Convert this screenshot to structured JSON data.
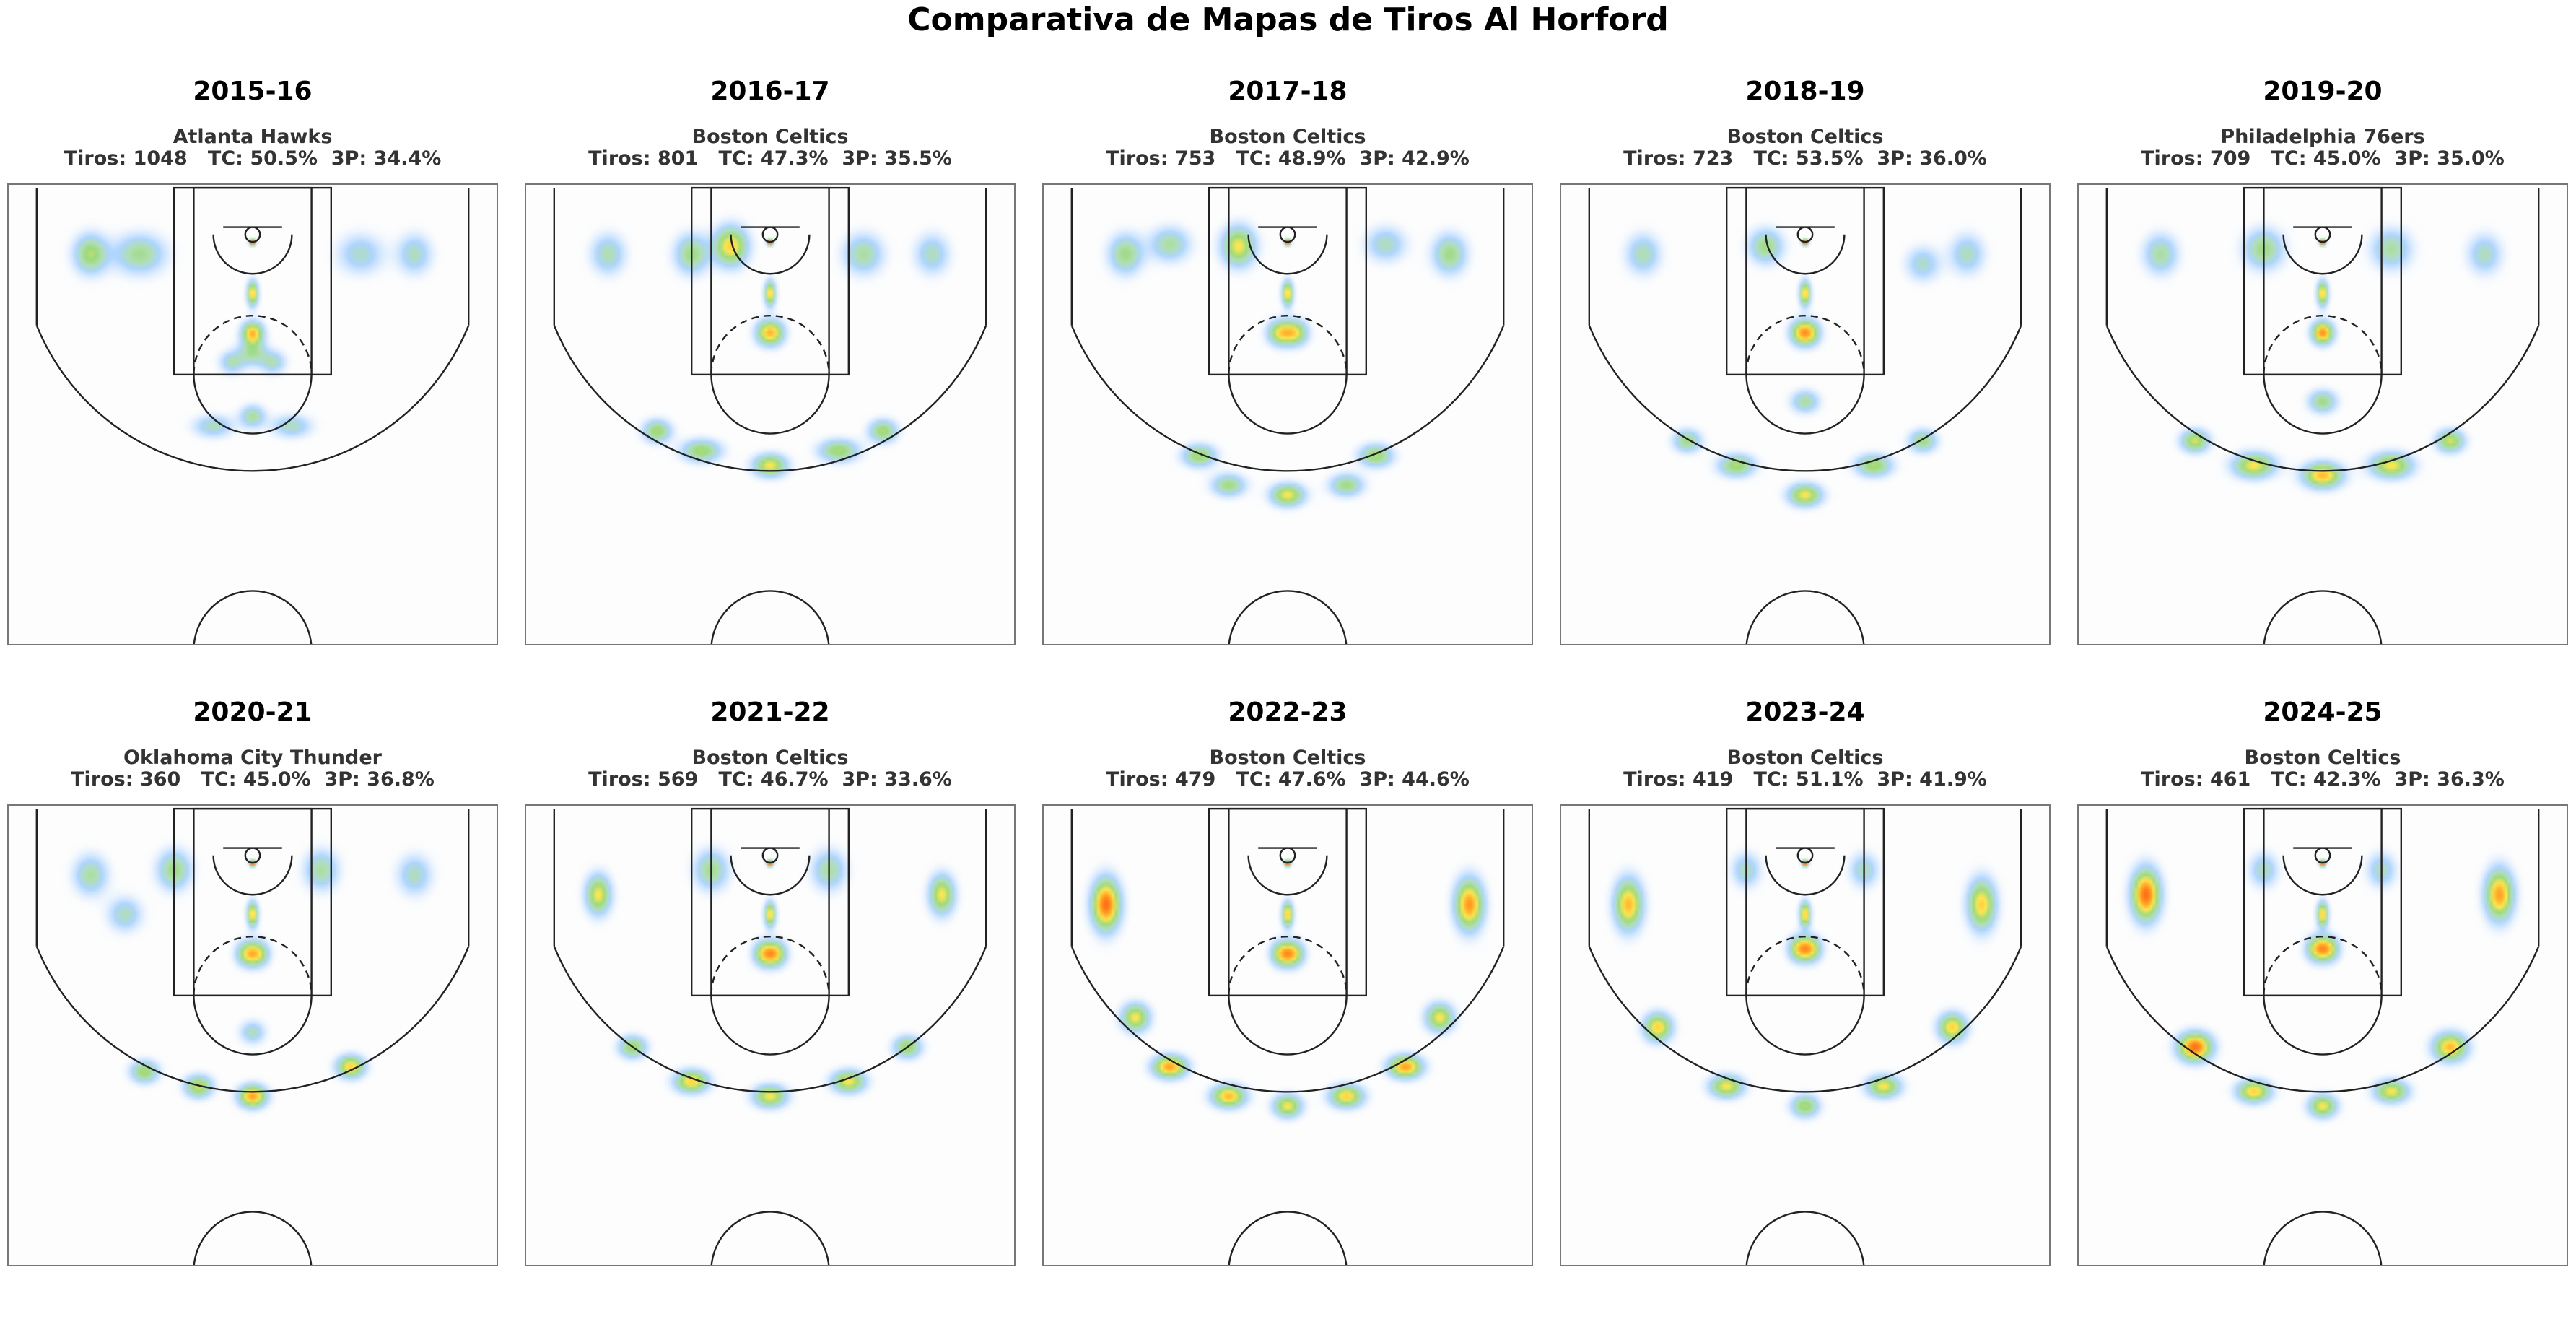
{
  "title": "Comparativa de Mapas de Tiros Al Horford",
  "chart_data": {
    "type": "heatmap",
    "title": "Comparativa de Mapas de Tiros Al Horford",
    "grid": false,
    "panels": [
      {
        "season": "2015-16",
        "team": "Atlanta Hawks",
        "stats": "Tiros: 1048   TC: 50.5%  3P: 34.4%",
        "shots": 1048,
        "fg_pct": 50.5,
        "three_pct": 34.4,
        "hotspots": [
          [
            0,
            8,
            2.2,
            2.2,
            1.0
          ],
          [
            0,
            60,
            4,
            9,
            0.6
          ],
          [
            -3,
            100,
            7,
            8,
            0.35
          ],
          [
            3,
            100,
            7,
            8,
            0.35
          ],
          [
            0,
            120,
            10,
            9,
            0.35
          ],
          [
            -21,
            130,
            9,
            8,
            0.3
          ],
          [
            21,
            130,
            9,
            8,
            0.3
          ],
          [
            0,
            185,
            9,
            8,
            0.35
          ],
          [
            -40,
            195,
            14,
            8,
            0.3
          ],
          [
            40,
            195,
            14,
            8,
            0.3
          ],
          [
            -165,
            20,
            12,
            14,
            0.45
          ],
          [
            -115,
            20,
            18,
            14,
            0.38
          ],
          [
            165,
            20,
            12,
            14,
            0.3
          ],
          [
            110,
            20,
            16,
            14,
            0.28
          ]
        ]
      },
      {
        "season": "2016-17",
        "team": "Boston Celtics",
        "stats": "Tiros: 801   TC: 47.3%  3P: 35.5%",
        "shots": 801,
        "fg_pct": 47.3,
        "three_pct": 35.5,
        "hotspots": [
          [
            0,
            8,
            2.2,
            2.2,
            1.0
          ],
          [
            0,
            60,
            4,
            9,
            0.6
          ],
          [
            -5,
            100,
            8,
            9,
            0.4
          ],
          [
            5,
            100,
            8,
            9,
            0.4
          ],
          [
            -40,
            12,
            12,
            14,
            0.6
          ],
          [
            0,
            235,
            12,
            8,
            0.55
          ],
          [
            -70,
            220,
            14,
            8,
            0.45
          ],
          [
            70,
            220,
            14,
            8,
            0.45
          ],
          [
            -115,
            200,
            10,
            8,
            0.45
          ],
          [
            115,
            200,
            10,
            8,
            0.45
          ],
          [
            -80,
            20,
            12,
            14,
            0.4
          ],
          [
            95,
            20,
            14,
            14,
            0.35
          ],
          [
            -165,
            20,
            12,
            14,
            0.32
          ],
          [
            165,
            20,
            12,
            14,
            0.3
          ]
        ]
      },
      {
        "season": "2017-18",
        "team": "Boston Celtics",
        "stats": "Tiros: 753   TC: 48.9%  3P: 42.9%",
        "shots": 753,
        "fg_pct": 48.9,
        "three_pct": 42.9,
        "hotspots": [
          [
            0,
            8,
            2.2,
            2.2,
            1.0
          ],
          [
            0,
            60,
            4,
            9,
            0.6
          ],
          [
            -8,
            100,
            9,
            9,
            0.5
          ],
          [
            8,
            100,
            9,
            9,
            0.5
          ],
          [
            -50,
            12,
            12,
            14,
            0.55
          ],
          [
            0,
            265,
            12,
            8,
            0.55
          ],
          [
            -90,
            225,
            12,
            8,
            0.45
          ],
          [
            90,
            225,
            12,
            8,
            0.45
          ],
          [
            -60,
            255,
            12,
            8,
            0.4
          ],
          [
            60,
            255,
            12,
            8,
            0.4
          ],
          [
            -165,
            20,
            12,
            14,
            0.4
          ],
          [
            165,
            20,
            12,
            14,
            0.4
          ],
          [
            -120,
            10,
            14,
            12,
            0.35
          ],
          [
            100,
            10,
            14,
            12,
            0.3
          ]
        ]
      },
      {
        "season": "2018-19",
        "team": "Boston Celtics",
        "stats": "Tiros: 723   TC: 53.5%  3P: 36.0%",
        "shots": 723,
        "fg_pct": 53.5,
        "three_pct": 36.0,
        "hotspots": [
          [
            0,
            8,
            2.2,
            2.2,
            1.0
          ],
          [
            0,
            60,
            4,
            9,
            0.6
          ],
          [
            -5,
            100,
            8,
            9,
            0.45
          ],
          [
            5,
            100,
            8,
            9,
            0.45
          ],
          [
            0,
            265,
            12,
            8,
            0.55
          ],
          [
            -70,
            235,
            13,
            8,
            0.45
          ],
          [
            70,
            235,
            13,
            8,
            0.45
          ],
          [
            -120,
            210,
            10,
            8,
            0.4
          ],
          [
            120,
            210,
            10,
            8,
            0.4
          ],
          [
            0,
            170,
            10,
            8,
            0.35
          ],
          [
            -40,
            12,
            12,
            12,
            0.4
          ],
          [
            -165,
            20,
            12,
            14,
            0.32
          ],
          [
            165,
            20,
            12,
            14,
            0.3
          ],
          [
            120,
            30,
            12,
            12,
            0.28
          ]
        ]
      },
      {
        "season": "2019-20",
        "team": "Philadelphia 76ers",
        "stats": "Tiros: 709   TC: 45.0%  3P: 35.0%",
        "shots": 709,
        "fg_pct": 45.0,
        "three_pct": 35.0,
        "hotspots": [
          [
            0,
            8,
            2.2,
            2.2,
            1.0
          ],
          [
            0,
            60,
            4,
            9,
            0.6
          ],
          [
            -3,
            100,
            7,
            8,
            0.4
          ],
          [
            3,
            100,
            7,
            8,
            0.4
          ],
          [
            0,
            245,
            14,
            9,
            0.65
          ],
          [
            -70,
            235,
            15,
            9,
            0.55
          ],
          [
            70,
            235,
            15,
            9,
            0.55
          ],
          [
            -130,
            210,
            10,
            8,
            0.5
          ],
          [
            130,
            210,
            10,
            8,
            0.5
          ],
          [
            0,
            170,
            10,
            8,
            0.4
          ],
          [
            -60,
            15,
            14,
            14,
            0.4
          ],
          [
            70,
            15,
            14,
            14,
            0.35
          ],
          [
            -165,
            20,
            12,
            14,
            0.35
          ],
          [
            165,
            20,
            12,
            14,
            0.3
          ]
        ]
      },
      {
        "season": "2020-21",
        "team": "Oklahoma City Thunder",
        "stats": "Tiros: 360   TC: 45.0%  3P: 36.8%",
        "shots": 360,
        "fg_pct": 45.0,
        "three_pct": 36.8,
        "hotspots": [
          [
            0,
            8,
            2.2,
            2.2,
            1.0
          ],
          [
            0,
            60,
            4,
            9,
            0.6
          ],
          [
            -6,
            100,
            8,
            9,
            0.45
          ],
          [
            6,
            100,
            8,
            9,
            0.45
          ],
          [
            0,
            245,
            10,
            8,
            0.7
          ],
          [
            -55,
            235,
            10,
            8,
            0.5
          ],
          [
            -110,
            220,
            10,
            8,
            0.45
          ],
          [
            100,
            215,
            10,
            8,
            0.6
          ],
          [
            0,
            180,
            9,
            8,
            0.3
          ],
          [
            -80,
            15,
            12,
            14,
            0.4
          ],
          [
            70,
            15,
            12,
            14,
            0.35
          ],
          [
            -165,
            20,
            12,
            14,
            0.35
          ],
          [
            165,
            20,
            12,
            14,
            0.3
          ],
          [
            -130,
            60,
            12,
            12,
            0.3
          ]
        ]
      },
      {
        "season": "2021-22",
        "team": "Boston Celtics",
        "stats": "Tiros: 569   TC: 46.7%  3P: 33.6%",
        "shots": 569,
        "fg_pct": 46.7,
        "three_pct": 33.6,
        "hotspots": [
          [
            0,
            8,
            2.2,
            2.2,
            1.0
          ],
          [
            0,
            60,
            4,
            9,
            0.6
          ],
          [
            -6,
            100,
            8,
            9,
            0.5
          ],
          [
            6,
            100,
            8,
            9,
            0.5
          ],
          [
            0,
            245,
            12,
            8,
            0.55
          ],
          [
            -80,
            230,
            12,
            8,
            0.6
          ],
          [
            80,
            230,
            12,
            8,
            0.55
          ],
          [
            -140,
            195,
            10,
            8,
            0.45
          ],
          [
            140,
            195,
            10,
            8,
            0.45
          ],
          [
            -175,
            40,
            9,
            14,
            0.55
          ],
          [
            175,
            40,
            9,
            14,
            0.55
          ],
          [
            -60,
            15,
            12,
            14,
            0.38
          ],
          [
            60,
            15,
            12,
            14,
            0.35
          ]
        ]
      },
      {
        "season": "2022-23",
        "team": "Boston Celtics",
        "stats": "Tiros: 479   TC: 47.6%  3P: 44.6%",
        "shots": 479,
        "fg_pct": 47.6,
        "three_pct": 44.6,
        "hotspots": [
          [
            0,
            8,
            2.2,
            2.2,
            1.0
          ],
          [
            0,
            60,
            4,
            9,
            0.62
          ],
          [
            -6,
            100,
            8,
            9,
            0.5
          ],
          [
            6,
            100,
            8,
            9,
            0.5
          ],
          [
            -185,
            50,
            10,
            18,
            0.8
          ],
          [
            185,
            50,
            10,
            18,
            0.72
          ],
          [
            -120,
            215,
            12,
            8,
            0.7
          ],
          [
            -60,
            245,
            12,
            8,
            0.65
          ],
          [
            0,
            255,
            10,
            8,
            0.55
          ],
          [
            60,
            245,
            12,
            8,
            0.6
          ],
          [
            120,
            215,
            12,
            8,
            0.7
          ],
          [
            -155,
            165,
            10,
            10,
            0.55
          ],
          [
            155,
            165,
            10,
            10,
            0.55
          ]
        ]
      },
      {
        "season": "2023-24",
        "team": "Boston Celtics",
        "stats": "Tiros: 419   TC: 51.1%  3P: 41.9%",
        "shots": 419,
        "fg_pct": 51.1,
        "three_pct": 41.9,
        "hotspots": [
          [
            0,
            8,
            2.2,
            2.2,
            1.0
          ],
          [
            0,
            60,
            4,
            9,
            0.62
          ],
          [
            -6,
            95,
            8,
            9,
            0.5
          ],
          [
            6,
            95,
            8,
            9,
            0.5
          ],
          [
            -180,
            50,
            10,
            18,
            0.65
          ],
          [
            180,
            50,
            10,
            18,
            0.6
          ],
          [
            -150,
            175,
            10,
            10,
            0.6
          ],
          [
            -80,
            235,
            12,
            8,
            0.55
          ],
          [
            0,
            255,
            10,
            8,
            0.45
          ],
          [
            80,
            235,
            12,
            8,
            0.55
          ],
          [
            150,
            175,
            10,
            10,
            0.6
          ],
          [
            -60,
            15,
            10,
            12,
            0.3
          ],
          [
            60,
            15,
            10,
            12,
            0.3
          ]
        ]
      },
      {
        "season": "2024-25",
        "team": "Boston Celtics",
        "stats": "Tiros: 461   TC: 42.3%  3P: 36.3%",
        "shots": 461,
        "fg_pct": 42.3,
        "three_pct": 36.3,
        "hotspots": [
          [
            0,
            8,
            2.2,
            2.2,
            1.0
          ],
          [
            0,
            60,
            4,
            9,
            0.62
          ],
          [
            -6,
            95,
            8,
            9,
            0.5
          ],
          [
            6,
            95,
            8,
            9,
            0.5
          ],
          [
            -180,
            40,
            10,
            18,
            0.8
          ],
          [
            180,
            40,
            10,
            18,
            0.7
          ],
          [
            -130,
            195,
            12,
            10,
            0.8
          ],
          [
            -70,
            240,
            12,
            8,
            0.6
          ],
          [
            0,
            255,
            10,
            8,
            0.55
          ],
          [
            70,
            240,
            12,
            8,
            0.55
          ],
          [
            130,
            195,
            12,
            10,
            0.65
          ],
          [
            -60,
            15,
            10,
            12,
            0.3
          ],
          [
            60,
            15,
            10,
            12,
            0.3
          ]
        ]
      }
    ]
  }
}
